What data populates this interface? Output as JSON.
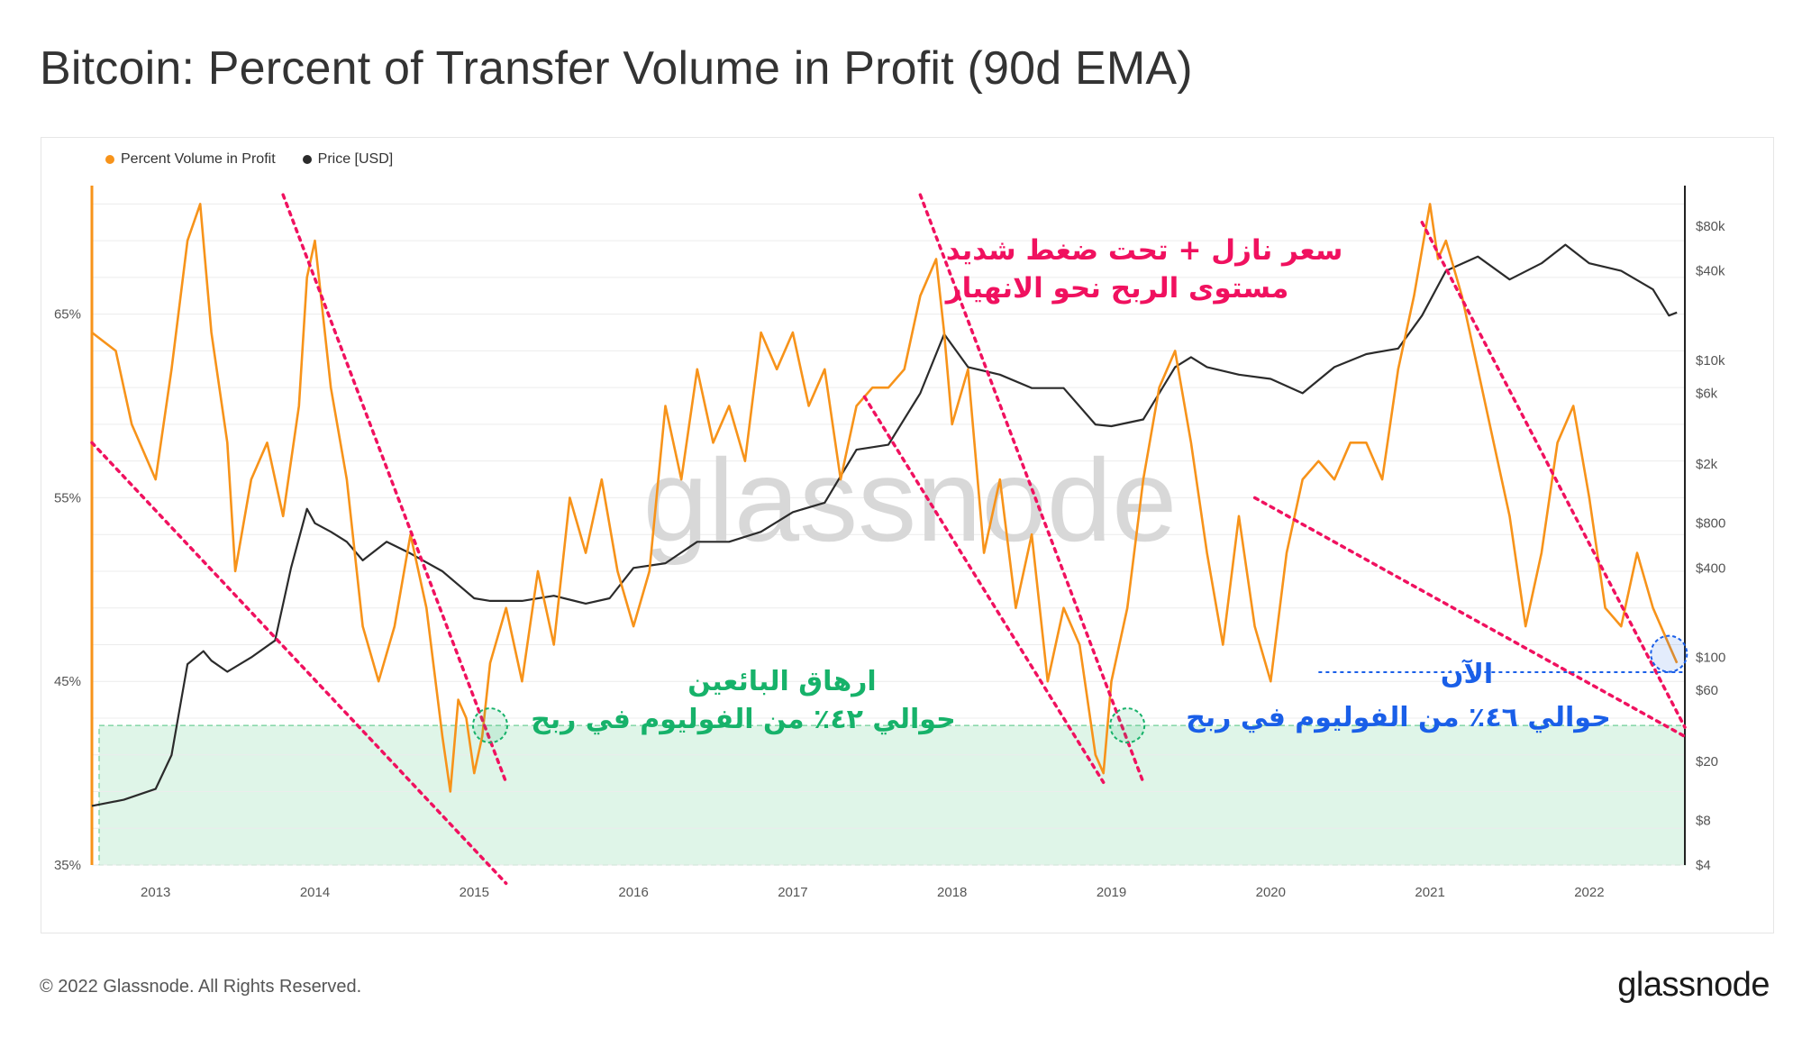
{
  "title": "Bitcoin: Percent of Transfer Volume in Profit (90d EMA)",
  "footer": {
    "copyright": "© 2022 Glassnode. All Rights Reserved.",
    "logo": "glassnode"
  },
  "watermark": "glassnode",
  "colors": {
    "orange": "#f7931a",
    "black": "#2b2b2b",
    "pink": "#f0115f",
    "green": "#17b26a",
    "blue": "#1a5fe8",
    "zone": "#dff5e8"
  },
  "chart_data": {
    "type": "line",
    "legend": [
      {
        "label": "Percent Volume in Profit",
        "color": "#f7931a"
      },
      {
        "label": "Price [USD]",
        "color": "#2b2b2b"
      }
    ],
    "x_ticks": [
      "2013",
      "2014",
      "2015",
      "2016",
      "2017",
      "2018",
      "2019",
      "2020",
      "2021",
      "2022"
    ],
    "y_left_ticks": [
      "65%",
      "55%",
      "45%",
      "35%"
    ],
    "y_left_range": [
      35,
      72
    ],
    "y_right_ticks": [
      "$80k",
      "$40k",
      "$10k",
      "$6k",
      "$2k",
      "$800",
      "$400",
      "$100",
      "$60",
      "$20",
      "$8",
      "$4"
    ],
    "y_right_scale": "log",
    "y_right_range": [
      4,
      150000
    ],
    "x_range": [
      2012.6,
      2022.6
    ],
    "series": [
      {
        "name": "Percent Volume in Profit",
        "color": "#f7931a",
        "x": [
          2012.6,
          2012.75,
          2012.85,
          2013.0,
          2013.1,
          2013.2,
          2013.28,
          2013.35,
          2013.45,
          2013.5,
          2013.6,
          2013.7,
          2013.8,
          2013.9,
          2013.95,
          2014.0,
          2014.1,
          2014.2,
          2014.3,
          2014.4,
          2014.5,
          2014.6,
          2014.7,
          2014.8,
          2014.85,
          2014.9,
          2014.95,
          2015.0,
          2015.05,
          2015.1,
          2015.2,
          2015.3,
          2015.4,
          2015.5,
          2015.6,
          2015.7,
          2015.8,
          2015.9,
          2016.0,
          2016.1,
          2016.2,
          2016.3,
          2016.4,
          2016.5,
          2016.6,
          2016.7,
          2016.8,
          2016.9,
          2017.0,
          2017.1,
          2017.2,
          2017.3,
          2017.4,
          2017.5,
          2017.6,
          2017.7,
          2017.8,
          2017.9,
          2017.95,
          2018.0,
          2018.1,
          2018.2,
          2018.3,
          2018.4,
          2018.5,
          2018.6,
          2018.7,
          2018.8,
          2018.9,
          2018.95,
          2019.0,
          2019.1,
          2019.2,
          2019.3,
          2019.4,
          2019.5,
          2019.6,
          2019.7,
          2019.8,
          2019.9,
          2020.0,
          2020.1,
          2020.2,
          2020.3,
          2020.4,
          2020.5,
          2020.6,
          2020.7,
          2020.8,
          2020.9,
          2021.0,
          2021.05,
          2021.1,
          2021.2,
          2021.3,
          2021.4,
          2021.5,
          2021.6,
          2021.7,
          2021.8,
          2021.9,
          2022.0,
          2022.1,
          2022.2,
          2022.3,
          2022.4,
          2022.5,
          2022.55
        ],
        "values": [
          64,
          63,
          59,
          56,
          62,
          69,
          71,
          64,
          58,
          51,
          56,
          58,
          54,
          60,
          67,
          69,
          61,
          56,
          48,
          45,
          48,
          53,
          49,
          42,
          39,
          44,
          43,
          40,
          42,
          46,
          49,
          45,
          51,
          47,
          55,
          52,
          56,
          51,
          48,
          51,
          60,
          56,
          62,
          58,
          60,
          57,
          64,
          62,
          64,
          60,
          62,
          56,
          60,
          61,
          61,
          62,
          66,
          68,
          64,
          59,
          62,
          52,
          56,
          49,
          53,
          45,
          49,
          47,
          41,
          40,
          45,
          49,
          56,
          61,
          63,
          58,
          52,
          47,
          54,
          48,
          45,
          52,
          56,
          57,
          56,
          58,
          58,
          56,
          62,
          66,
          71,
          68,
          69,
          66,
          62,
          58,
          54,
          48,
          52,
          58,
          60,
          55,
          49,
          48,
          52,
          49,
          47,
          46
        ]
      },
      {
        "name": "Price [USD]",
        "color": "#2b2b2b",
        "x": [
          2012.6,
          2012.8,
          2013.0,
          2013.1,
          2013.2,
          2013.3,
          2013.35,
          2013.45,
          2013.6,
          2013.75,
          2013.85,
          2013.95,
          2014.0,
          2014.1,
          2014.2,
          2014.3,
          2014.45,
          2014.6,
          2014.8,
          2015.0,
          2015.1,
          2015.3,
          2015.5,
          2015.7,
          2015.85,
          2016.0,
          2016.2,
          2016.4,
          2016.6,
          2016.8,
          2017.0,
          2017.2,
          2017.4,
          2017.6,
          2017.8,
          2017.95,
          2018.1,
          2018.3,
          2018.5,
          2018.7,
          2018.9,
          2019.0,
          2019.2,
          2019.4,
          2019.5,
          2019.6,
          2019.8,
          2020.0,
          2020.2,
          2020.4,
          2020.6,
          2020.8,
          2020.95,
          2021.1,
          2021.3,
          2021.5,
          2021.7,
          2021.85,
          2022.0,
          2022.2,
          2022.4,
          2022.5,
          2022.55
        ],
        "values": [
          10,
          11,
          13,
          22,
          90,
          110,
          95,
          80,
          100,
          130,
          400,
          1000,
          800,
          700,
          600,
          450,
          600,
          500,
          380,
          250,
          240,
          240,
          260,
          230,
          250,
          400,
          430,
          600,
          600,
          700,
          950,
          1100,
          2500,
          2700,
          6000,
          15000,
          9000,
          8000,
          6500,
          6500,
          3700,
          3600,
          4000,
          9000,
          10500,
          9000,
          8000,
          7500,
          6000,
          9000,
          11000,
          12000,
          20000,
          40000,
          50000,
          35000,
          45000,
          60000,
          45000,
          40000,
          30000,
          20000,
          21000
        ]
      }
    ],
    "annotations": [
      {
        "text": "سعر نازل + تحت ضغط شديد",
        "color": "#f0115f"
      },
      {
        "text": "مستوى الربح نحو الانهيار",
        "color": "#f0115f"
      },
      {
        "text": "ارهاق البائعين",
        "color": "#17b26a"
      },
      {
        "text": "حوالي ٤٢٪ من الفوليوم في ربح",
        "color": "#17b26a"
      },
      {
        "text": "الآن",
        "color": "#1a5fe8"
      },
      {
        "text": "حوالي ٤٦٪ من الفوليوم في ربح",
        "color": "#1a5fe8"
      }
    ],
    "capitulation_zone": [
      35,
      42.6
    ],
    "current_level": 45.5,
    "grid": true
  }
}
